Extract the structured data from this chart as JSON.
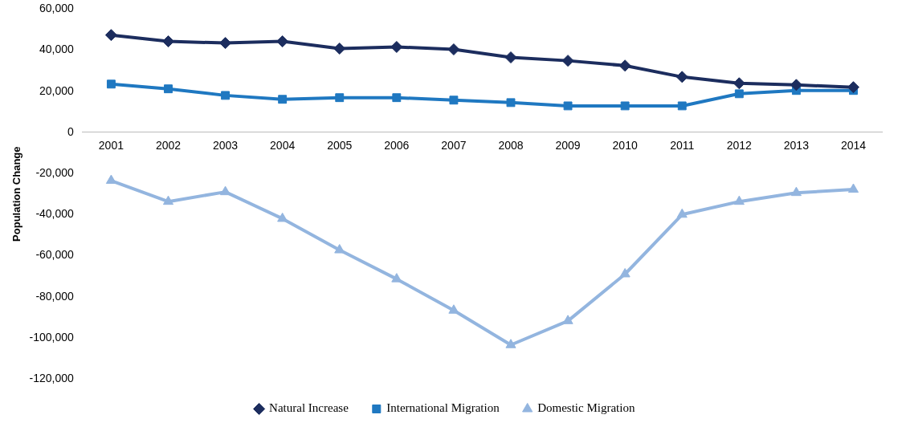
{
  "chart_data": {
    "type": "line",
    "ylabel": "Population Change",
    "categories": [
      "2001",
      "2002",
      "2003",
      "2004",
      "2005",
      "2006",
      "2007",
      "2008",
      "2009",
      "2010",
      "2011",
      "2012",
      "2013",
      "2014"
    ],
    "series": [
      {
        "name": "Natural Increase",
        "color": "#1c2d5e",
        "marker": "diamond",
        "values": [
          47400,
          44300,
          43500,
          44300,
          40800,
          41600,
          40400,
          36500,
          34900,
          32500,
          27000,
          23900,
          23100,
          22000
        ]
      },
      {
        "name": "International Migration",
        "color": "#1f78c1",
        "marker": "square",
        "values": [
          23500,
          21200,
          18000,
          16100,
          16900,
          16900,
          15700,
          14500,
          12900,
          12900,
          12900,
          18800,
          20400,
          20400
        ]
      },
      {
        "name": "Domestic Migration",
        "color": "#93b5df",
        "marker": "triangle",
        "values": [
          -23500,
          -33700,
          -29000,
          -42000,
          -57300,
          -71400,
          -86700,
          -103500,
          -91800,
          -69000,
          -40000,
          -33700,
          -29400,
          -27800
        ]
      }
    ],
    "ylim": [
      -120000,
      60000
    ],
    "yticks": [
      {
        "value": -120000,
        "label": "-120,000"
      },
      {
        "value": -100000,
        "label": "-100,000"
      },
      {
        "value": -80000,
        "label": "-80,000"
      },
      {
        "value": -60000,
        "label": "-60,000"
      },
      {
        "value": -40000,
        "label": "-40,000"
      },
      {
        "value": -20000,
        "label": "-20,000"
      },
      0,
      {
        "value": 20000,
        "label": "20,000"
      },
      {
        "value": 40000,
        "label": "40,000"
      },
      {
        "value": 60000,
        "label": "60,000"
      }
    ],
    "grid": false,
    "legend": "bottom",
    "line_style": "solid"
  }
}
